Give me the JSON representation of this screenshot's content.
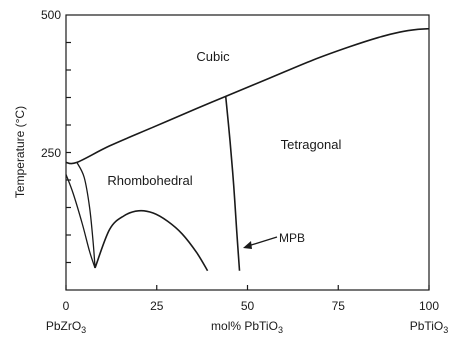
{
  "chart_data": {
    "type": "line",
    "title": "",
    "xlabel": "mol% PbTiO3",
    "ylabel": "Temperature (°C)",
    "xlim": [
      0,
      100
    ],
    "ylim": [
      0,
      500
    ],
    "x_ticks": [
      "0",
      "25",
      "50",
      "75",
      "100"
    ],
    "y_ticks": [
      "250",
      "500"
    ],
    "x_end_labels": {
      "left": "PbZrO3",
      "right": "PbTiO3"
    },
    "regions": [
      "Cubic",
      "Tetragonal",
      "Rhombohedral"
    ],
    "annotation": "MPB",
    "series": [
      {
        "values": [
          {
            "x": 0,
            "y": 232
          },
          {
            "x": 3,
            "y": 232
          },
          {
            "x": 12,
            "y": 262
          },
          {
            "x": 24,
            "y": 296
          },
          {
            "x": 36,
            "y": 330
          },
          {
            "x": 44,
            "y": 352
          },
          {
            "x": 56,
            "y": 385
          },
          {
            "x": 68,
            "y": 418
          },
          {
            "x": 78,
            "y": 442
          },
          {
            "x": 86,
            "y": 459
          },
          {
            "x": 92,
            "y": 469
          },
          {
            "x": 97,
            "y": 474
          },
          {
            "x": 100,
            "y": 475
          }
        ]
      },
      {
        "values": [
          {
            "x": 3,
            "y": 232
          },
          {
            "x": 5,
            "y": 205
          },
          {
            "x": 6.5,
            "y": 150
          },
          {
            "x": 7.5,
            "y": 85
          },
          {
            "x": 8,
            "y": 40
          }
        ]
      },
      {
        "values": [
          {
            "x": 0,
            "y": 210
          },
          {
            "x": 2,
            "y": 175
          },
          {
            "x": 4.5,
            "y": 120
          },
          {
            "x": 6.5,
            "y": 70
          },
          {
            "x": 8,
            "y": 40
          }
        ]
      },
      {
        "values": [
          {
            "x": 8,
            "y": 40
          },
          {
            "x": 12,
            "y": 110
          },
          {
            "x": 16,
            "y": 135
          },
          {
            "x": 20,
            "y": 144
          },
          {
            "x": 24,
            "y": 140
          },
          {
            "x": 28,
            "y": 125
          },
          {
            "x": 32,
            "y": 102
          },
          {
            "x": 36,
            "y": 68
          },
          {
            "x": 39,
            "y": 35
          }
        ]
      },
      {
        "values": [
          {
            "x": 44,
            "y": 352
          },
          {
            "x": 45.2,
            "y": 270
          },
          {
            "x": 46.2,
            "y": 190
          },
          {
            "x": 47,
            "y": 110
          },
          {
            "x": 47.8,
            "y": 35
          }
        ]
      }
    ]
  }
}
